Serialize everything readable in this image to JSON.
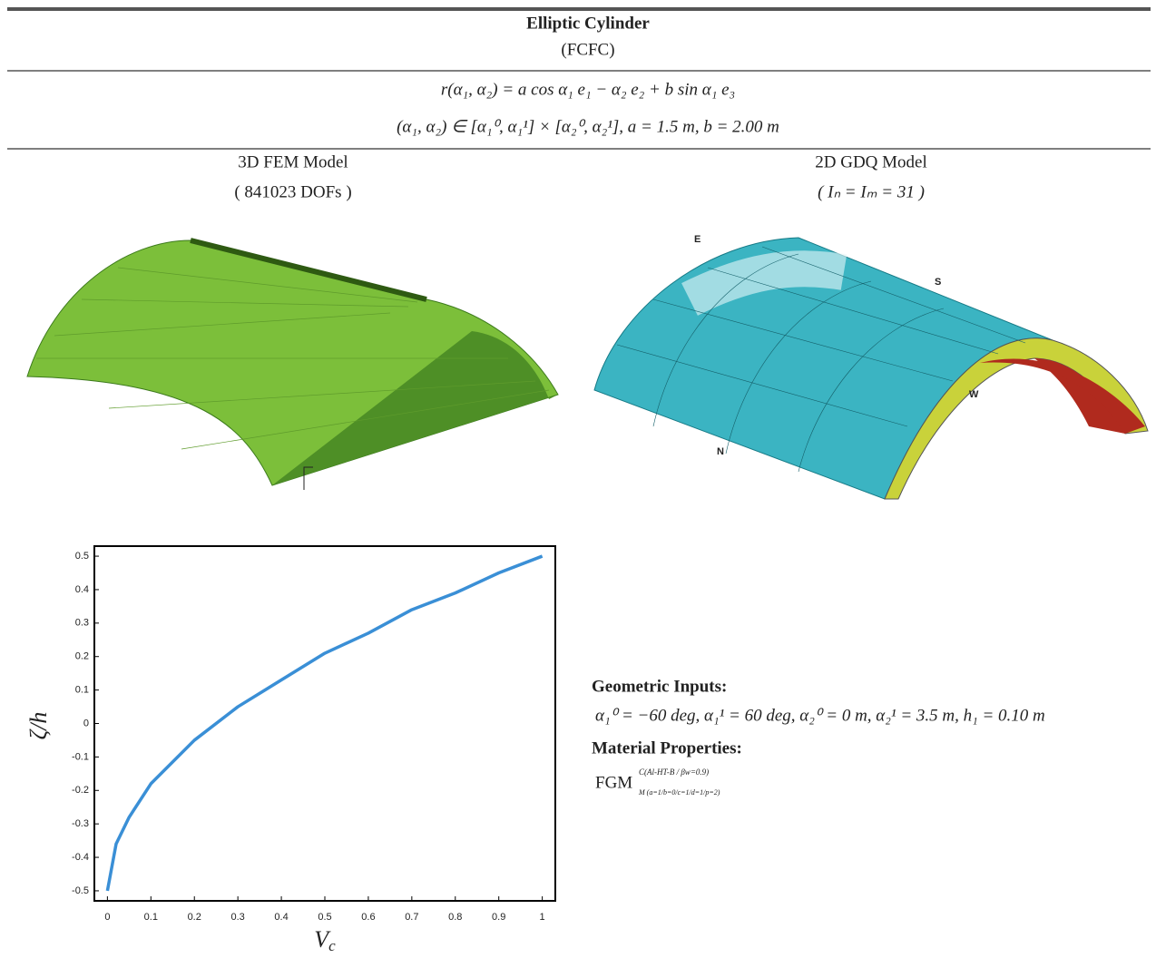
{
  "header": {
    "title": "Elliptic Cylinder",
    "subtitle": "(FCFC)"
  },
  "equations": [
    "r(α₁, α₂) = a cos α₁ e₁ − α₂ e₂ + b sin α₁ e₃",
    "(α₁, α₂) ∈ [α₁⁰, α₁¹] × [α₂⁰, α₂¹],   a = 1.5 m,   b = 2.00 m"
  ],
  "models": [
    {
      "title": "3D FEM Model",
      "caption": "( 841023 DOFs )"
    },
    {
      "title": "2D GDQ Model",
      "caption": "( Iₙ = Iₘ = 31 )",
      "edge_labels": [
        "E",
        "S",
        "W",
        "N"
      ]
    }
  ],
  "inputs": {
    "geometric_heading": "Geometric Inputs:",
    "geometric": "α₁⁰ = −60 deg,  α₁¹ = 60 deg,  α₂⁰ = 0 m,  α₂¹ = 3.5 m,  h₁ = 0.10 m",
    "material_heading": "Material Properties:",
    "material_base": "FGM",
    "material_sup": "C(Al-HT-B / βw=0.9)",
    "material_sub": "M (a=1/b=0/c=1/d=1/p=2)"
  },
  "chart_data": {
    "type": "line",
    "x_label": "V",
    "x_label_subscript": "c",
    "y_label": "ζ/h",
    "x": [
      0,
      0.02,
      0.05,
      0.1,
      0.2,
      0.3,
      0.4,
      0.5,
      0.6,
      0.7,
      0.8,
      0.9,
      1
    ],
    "values": [
      -0.5,
      -0.36,
      -0.28,
      -0.18,
      -0.05,
      0.05,
      0.13,
      0.21,
      0.27,
      0.34,
      0.39,
      0.45,
      0.5
    ],
    "color": "#3a8fd6",
    "xlim": [
      -0.03,
      1.03
    ],
    "ylim": [
      -0.53,
      0.53
    ],
    "xticks": [
      0,
      0.1,
      0.2,
      0.3,
      0.4,
      0.5,
      0.6,
      0.7,
      0.8,
      0.9,
      1
    ],
    "yticks": [
      -0.5,
      -0.4,
      -0.3,
      -0.2,
      -0.1,
      0,
      0.1,
      0.2,
      0.3,
      0.4,
      0.5
    ]
  }
}
